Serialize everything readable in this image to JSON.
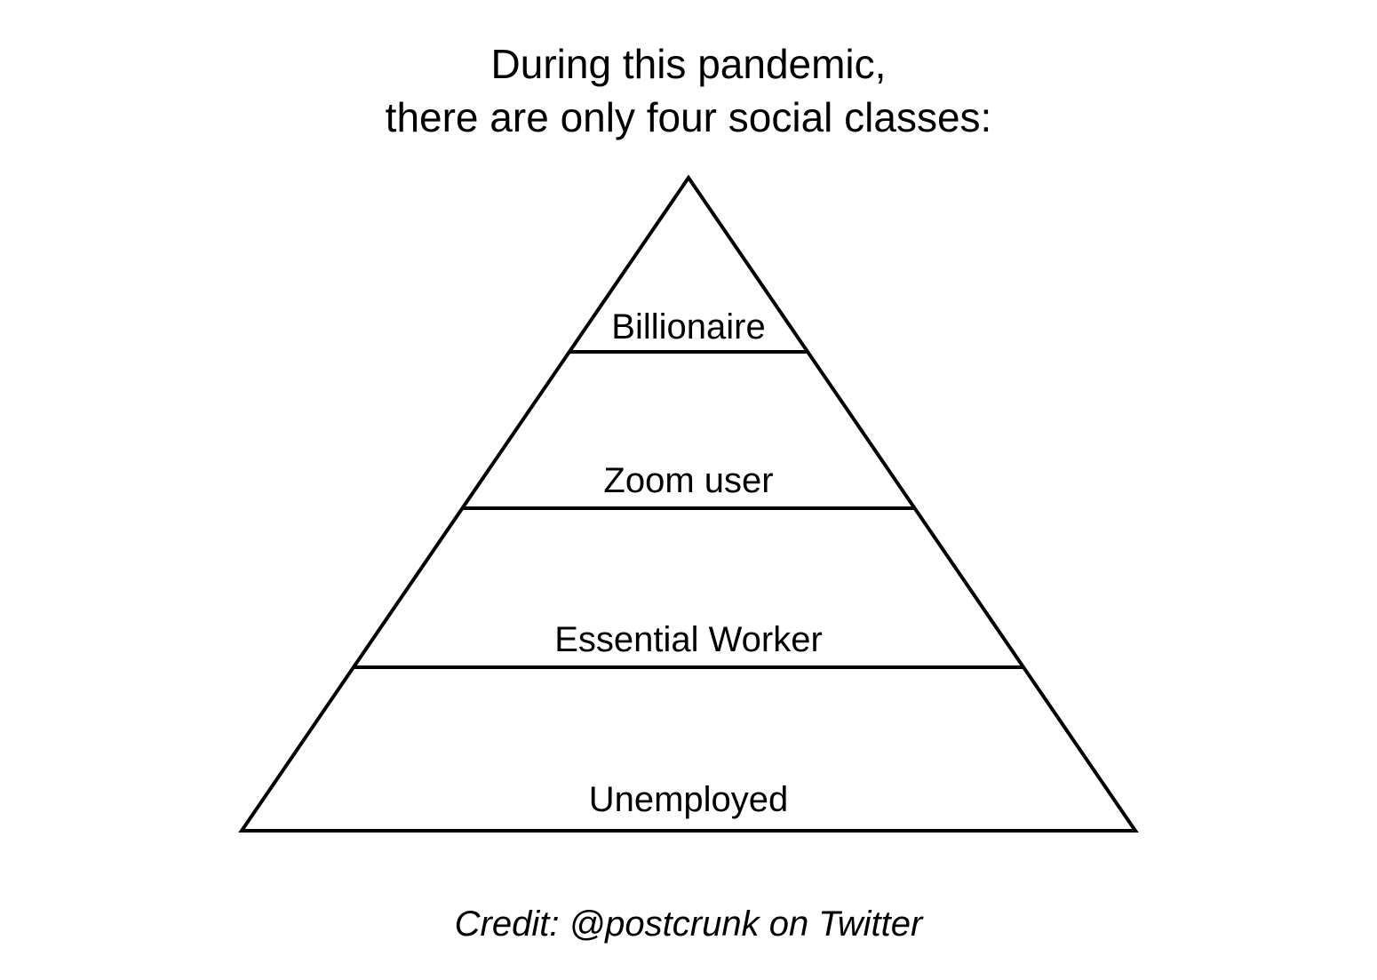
{
  "title": {
    "line1": "During this pandemic,",
    "line2": "there are only four social classes:"
  },
  "pyramid": {
    "tiers": [
      {
        "label": "Billionaire"
      },
      {
        "label": "Zoom user"
      },
      {
        "label": "Essential Worker"
      },
      {
        "label": "Unemployed"
      }
    ],
    "stroke_color": "#000000"
  },
  "credit": "Credit: @postcrunk on Twitter"
}
